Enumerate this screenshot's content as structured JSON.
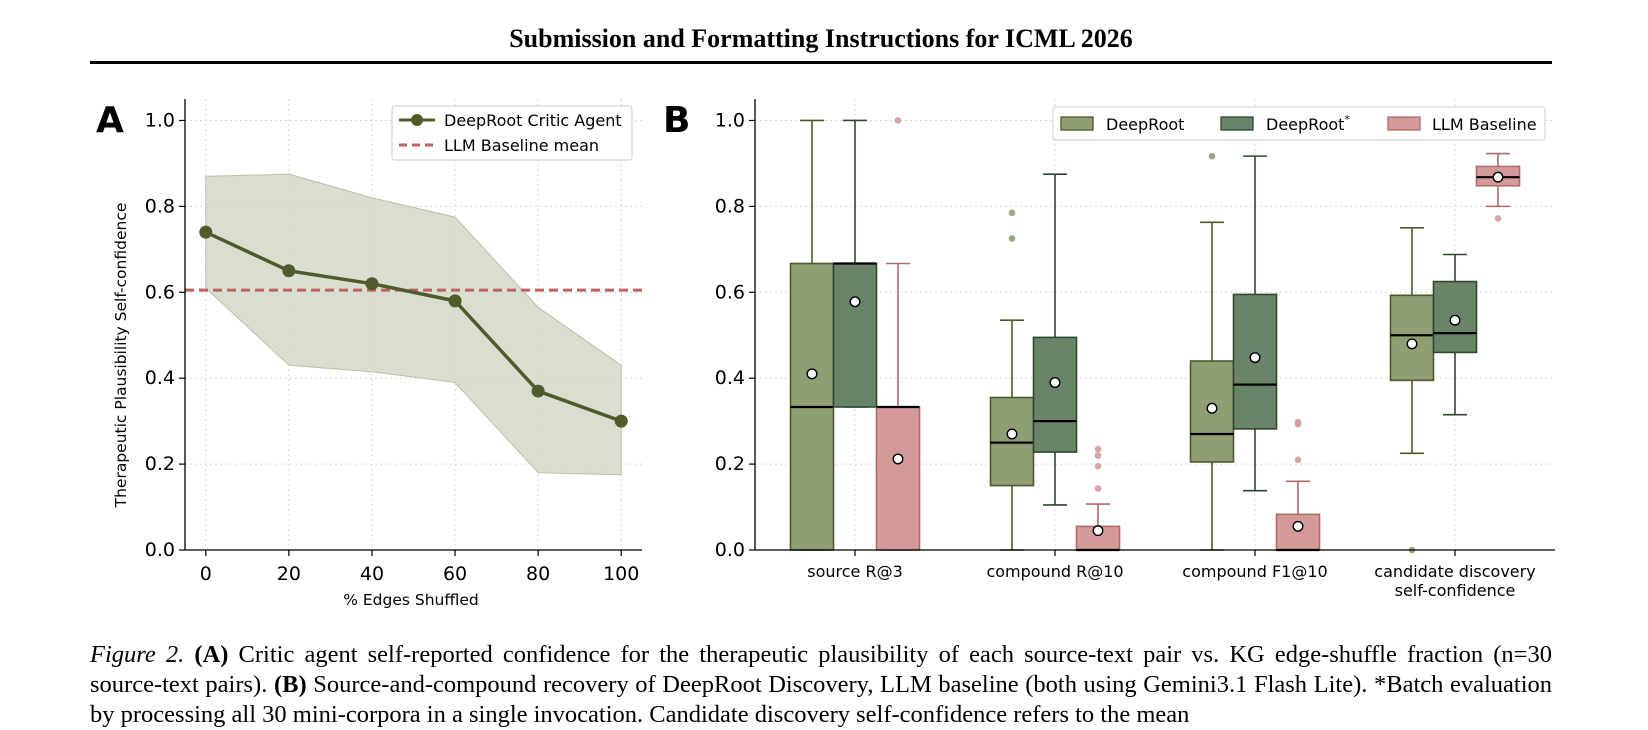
{
  "header": {
    "title": "Submission and Formatting Instructions for ICML 2026"
  },
  "colors": {
    "deeproot": "#8f9f73",
    "deeproot_star": "#6a8468",
    "baseline": "#d49a9a",
    "agent_line": "#4d5c2a",
    "band": "#d8dccd",
    "baseline_mean": "#c06060",
    "deeproot_edge": "#4a5a2a",
    "deeproot_star_edge": "#2e4a2e",
    "baseline_edge": "#b06a6a"
  },
  "chart_data": [
    {
      "panel_label": "A",
      "type": "line",
      "title": "",
      "xlabel": "% Edges Shuffled",
      "ylabel": "Therapeutic Plausibility Self-confidence",
      "xlim": [
        -5,
        105
      ],
      "ylim": [
        0,
        1.05
      ],
      "xticks": [
        0,
        20,
        40,
        60,
        80,
        100
      ],
      "yticks": [
        0.0,
        0.2,
        0.4,
        0.6,
        0.8,
        1.0
      ],
      "grid": true,
      "legend_position": "top-right",
      "series": [
        {
          "name": "DeepRoot Critic Agent",
          "x": [
            0,
            20,
            40,
            60,
            80,
            100
          ],
          "y": [
            0.74,
            0.65,
            0.62,
            0.58,
            0.37,
            0.3
          ],
          "band_upper": [
            0.87,
            0.875,
            0.82,
            0.775,
            0.565,
            0.43
          ],
          "band_lower": [
            0.61,
            0.43,
            0.415,
            0.39,
            0.18,
            0.175
          ]
        }
      ],
      "reference_lines": [
        {
          "name": "LLM Baseline mean",
          "y": 0.605,
          "style": "dashed"
        }
      ]
    },
    {
      "panel_label": "B",
      "type": "box",
      "title": "",
      "xlabel": "",
      "ylabel": "",
      "ylim": [
        0,
        1.05
      ],
      "yticks": [
        0.0,
        0.2,
        0.4,
        0.6,
        0.8,
        1.0
      ],
      "grid": true,
      "legend_position": "top",
      "categories": [
        [
          "source R@3"
        ],
        [
          "compound R@10"
        ],
        [
          "compound F1@10"
        ],
        [
          "candidate discovery",
          "self-confidence"
        ]
      ],
      "series": [
        {
          "name": "DeepRoot",
          "boxes": [
            {
              "q1": 0.0,
              "median": 0.333,
              "q3": 0.667,
              "whislo": 0.0,
              "whishi": 1.0,
              "mean": 0.41,
              "fliers": []
            },
            {
              "q1": 0.15,
              "median": 0.25,
              "q3": 0.355,
              "whislo": 0.0,
              "whishi": 0.535,
              "mean": 0.27,
              "fliers": [
                0.725,
                0.785
              ]
            },
            {
              "q1": 0.205,
              "median": 0.27,
              "q3": 0.44,
              "whislo": 0.0,
              "whishi": 0.763,
              "mean": 0.33,
              "fliers": [
                0.917
              ]
            },
            {
              "q1": 0.395,
              "median": 0.5,
              "q3": 0.593,
              "whislo": 0.225,
              "whishi": 0.75,
              "mean": 0.48,
              "fliers": [
                0.0
              ]
            }
          ]
        },
        {
          "name": "DeepRoot*",
          "boxes": [
            {
              "q1": 0.333,
              "median": 0.667,
              "q3": 0.667,
              "whislo": 0.333,
              "whishi": 1.0,
              "mean": 0.578,
              "fliers": []
            },
            {
              "q1": 0.228,
              "median": 0.3,
              "q3": 0.495,
              "whislo": 0.105,
              "whishi": 0.875,
              "mean": 0.39,
              "fliers": []
            },
            {
              "q1": 0.282,
              "median": 0.385,
              "q3": 0.595,
              "whislo": 0.138,
              "whishi": 0.917,
              "mean": 0.448,
              "fliers": []
            },
            {
              "q1": 0.46,
              "median": 0.505,
              "q3": 0.625,
              "whislo": 0.315,
              "whishi": 0.688,
              "mean": 0.535,
              "fliers": []
            }
          ]
        },
        {
          "name": "LLM Baseline",
          "boxes": [
            {
              "q1": 0.0,
              "median": 0.333,
              "q3": 0.333,
              "whislo": 0.0,
              "whishi": 0.667,
              "mean": 0.212,
              "fliers": [
                1.0
              ]
            },
            {
              "q1": 0.0,
              "median": 0.0,
              "q3": 0.055,
              "whislo": 0.0,
              "whishi": 0.107,
              "mean": 0.045,
              "fliers": [
                0.143,
                0.195,
                0.22,
                0.235
              ]
            },
            {
              "q1": 0.0,
              "median": 0.0,
              "q3": 0.083,
              "whislo": 0.0,
              "whishi": 0.16,
              "mean": 0.055,
              "fliers": [
                0.21,
                0.293,
                0.298
              ]
            },
            {
              "q1": 0.848,
              "median": 0.868,
              "q3": 0.893,
              "whislo": 0.8,
              "whishi": 0.923,
              "mean": 0.868,
              "fliers": [
                0.772
              ]
            }
          ]
        }
      ]
    }
  ],
  "caption": {
    "fig_label": "Figure 2.",
    "part_a_label": "(A)",
    "part_a_text": "Critic agent self-reported confidence for the therapeutic plausibility of each source-text pair vs. KG edge-shuffle fraction (n=30 source-text pairs).",
    "part_b_label": "(B)",
    "part_b_text": "Source-and-compound recovery of DeepRoot Discovery, LLM baseline (both using Gemini3.1 Flash Lite).",
    "line3_text": "*Batch evaluation by processing all 30 mini-corpora in a single invocation. Candidate discovery self-confidence refers to the mean"
  }
}
